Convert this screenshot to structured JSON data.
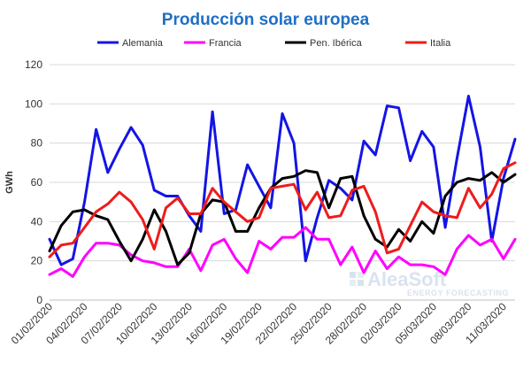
{
  "chart_data": {
    "type": "line",
    "title": "Producción solar europea",
    "title_color": "#1f6fc5",
    "ylabel": "GWh",
    "ylim": [
      0,
      120
    ],
    "yticks": [
      0,
      20,
      40,
      60,
      80,
      100,
      120
    ],
    "grid": true,
    "legend_position": "top",
    "x_tick_labels": [
      "01/02/2020",
      "04/02/2020",
      "07/02/2020",
      "10/02/2020",
      "13/02/2020",
      "16/02/2020",
      "19/02/2020",
      "22/02/2020",
      "25/02/2020",
      "28/02/2020",
      "02/03/2020",
      "05/03/2020",
      "08/03/2020",
      "11/03/2020"
    ],
    "x": [
      "01/02/2020",
      "02/02/2020",
      "03/02/2020",
      "04/02/2020",
      "05/02/2020",
      "06/02/2020",
      "07/02/2020",
      "08/02/2020",
      "09/02/2020",
      "10/02/2020",
      "11/02/2020",
      "12/02/2020",
      "13/02/2020",
      "14/02/2020",
      "15/02/2020",
      "16/02/2020",
      "17/02/2020",
      "18/02/2020",
      "19/02/2020",
      "20/02/2020",
      "21/02/2020",
      "22/02/2020",
      "23/02/2020",
      "24/02/2020",
      "25/02/2020",
      "26/02/2020",
      "27/02/2020",
      "28/02/2020",
      "29/02/2020",
      "01/03/2020",
      "02/03/2020",
      "03/03/2020",
      "04/03/2020",
      "05/03/2020",
      "06/03/2020",
      "07/03/2020",
      "08/03/2020",
      "09/03/2020",
      "10/03/2020",
      "11/03/2020",
      "12/03/2020"
    ],
    "series": [
      {
        "name": "Alemania",
        "color": "#1414e6",
        "values": [
          31,
          18,
          21,
          50,
          87,
          65,
          77,
          88,
          79,
          56,
          53,
          53,
          43,
          35,
          96,
          44,
          46,
          69,
          58,
          47,
          95,
          80,
          20,
          42,
          61,
          57,
          51,
          81,
          74,
          99,
          98,
          71,
          86,
          78,
          37,
          72,
          104,
          78,
          30,
          62,
          82
        ]
      },
      {
        "name": "Francia",
        "color": "#ff00ff",
        "values": [
          13,
          16,
          12,
          22,
          29,
          29,
          28,
          23,
          20,
          19,
          17,
          17,
          26,
          15,
          28,
          31,
          21,
          14,
          30,
          26,
          32,
          32,
          37,
          31,
          31,
          18,
          27,
          14,
          25,
          16,
          22,
          18,
          18,
          17,
          13,
          26,
          33,
          28,
          31,
          21,
          31
        ]
      },
      {
        "name": "Pen. Ibérica",
        "color": "#000000",
        "values": [
          25,
          38,
          45,
          46,
          43,
          41,
          30,
          20,
          31,
          46,
          35,
          18,
          24,
          44,
          51,
          50,
          35,
          35,
          47,
          57,
          62,
          63,
          66,
          65,
          47,
          62,
          63,
          43,
          31,
          27,
          36,
          30,
          40,
          34,
          53,
          60,
          62,
          61,
          65,
          60,
          64
        ]
      },
      {
        "name": "Italia",
        "color": "#ee1c1c",
        "values": [
          22,
          28,
          29,
          37,
          45,
          49,
          55,
          50,
          41,
          26,
          47,
          52,
          44,
          44,
          57,
          50,
          45,
          40,
          42,
          57,
          58,
          59,
          46,
          55,
          42,
          43,
          56,
          58,
          45,
          24,
          26,
          38,
          50,
          45,
          43,
          42,
          57,
          47,
          54,
          67,
          70
        ]
      }
    ]
  },
  "watermark": {
    "brand": "AleaSoft",
    "tagline": "ENERGY FORECASTING"
  }
}
